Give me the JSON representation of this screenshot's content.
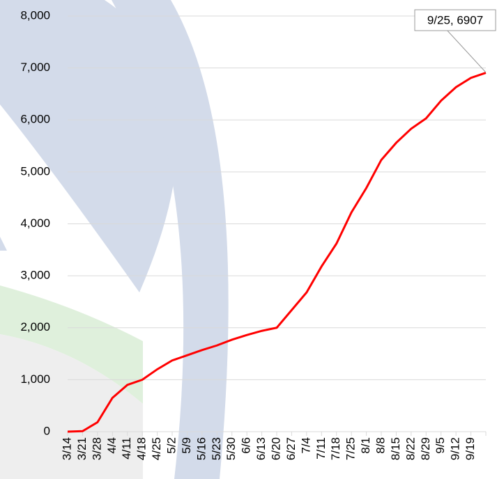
{
  "chart_data": {
    "type": "line",
    "categories": [
      "3/14",
      "3/21",
      "3/28",
      "4/4",
      "4/11",
      "4/18",
      "4/25",
      "5/2",
      "5/9",
      "5/16",
      "5/23",
      "5/30",
      "6/6",
      "6/13",
      "6/20",
      "6/27",
      "7/4",
      "7/11",
      "7/18",
      "7/25",
      "8/1",
      "8/8",
      "8/15",
      "8/22",
      "8/29",
      "9/5",
      "9/12",
      "9/19",
      null
    ],
    "series": [
      {
        "color": "#ff0000",
        "values": [
          0,
          10,
          180,
          650,
          900,
          1000,
          1200,
          1370,
          1470,
          1570,
          1660,
          1770,
          1860,
          1940,
          2000,
          2340,
          2680,
          3180,
          3620,
          4220,
          4690,
          5230,
          5560,
          5830,
          6030,
          6370,
          6630,
          6810,
          6907
        ]
      }
    ],
    "ylim": [
      0,
      8000
    ],
    "yticks": [
      0,
      {
        "value": 1000,
        "label": "1,000"
      },
      {
        "value": 2000,
        "label": "2,000"
      },
      {
        "value": 3000,
        "label": "3,000"
      },
      {
        "value": 4000,
        "label": "4,000"
      },
      {
        "value": 5000,
        "label": "5,000"
      },
      {
        "value": 6000,
        "label": "6,000"
      },
      {
        "value": 7000,
        "label": "7,000"
      },
      {
        "value": 8000,
        "label": "8,000"
      }
    ],
    "grid": true,
    "annotations": [
      {
        "text": "9/25, 6907"
      }
    ]
  }
}
